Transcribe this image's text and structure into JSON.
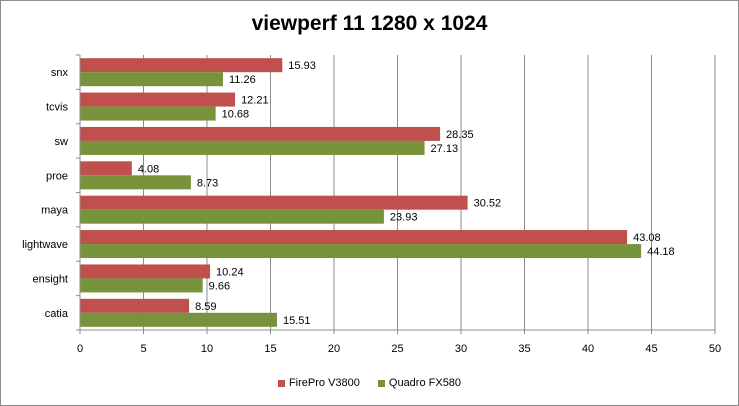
{
  "chart_data": {
    "type": "bar",
    "orientation": "horizontal",
    "title": "viewperf 11 1280 x 1024",
    "categories": [
      "snx",
      "tcvis",
      "sw",
      "proe",
      "maya",
      "lightwave",
      "ensight",
      "catia"
    ],
    "series": [
      {
        "name": "FirePro V3800",
        "color": "#c0504d",
        "values": [
          15.93,
          12.21,
          28.35,
          4.08,
          30.52,
          43.08,
          10.24,
          8.59
        ]
      },
      {
        "name": "Quadro FX580",
        "color": "#77933c",
        "values": [
          11.26,
          10.68,
          27.13,
          8.73,
          23.93,
          44.18,
          9.66,
          15.51
        ]
      }
    ],
    "xlim": [
      0,
      50
    ],
    "xticks": [
      0,
      5,
      10,
      15,
      20,
      25,
      30,
      35,
      40,
      45,
      50
    ],
    "grid": true,
    "legend": "bottom"
  }
}
